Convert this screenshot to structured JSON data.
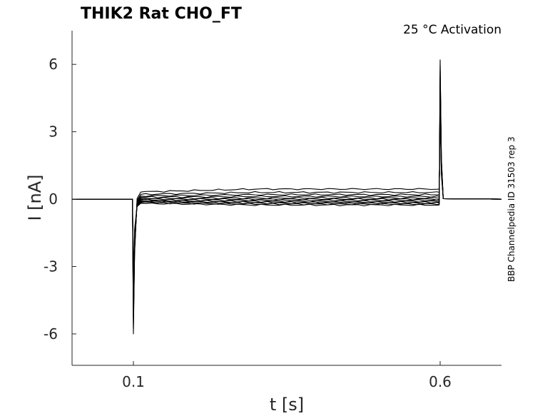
{
  "chart_data": {
    "type": "line",
    "title": "THIK2  Rat  CHO_FT",
    "subtitle": "25 °C  Activation",
    "side_note": "BBP Channelpedia ID 31503 rep 3",
    "xlabel": "t [s]",
    "ylabel": "I [nA]",
    "xlim": [
      0.0,
      0.7
    ],
    "ylim": [
      -7.4,
      7.5
    ],
    "xticks": [
      0.1,
      0.6
    ],
    "xtick_labels": [
      "0.1",
      "0.6"
    ],
    "yticks": [
      6,
      3,
      0,
      -3,
      -6
    ],
    "ytick_labels": [
      "6",
      "3",
      "0",
      "-3",
      "-6"
    ],
    "grid": false,
    "legend": "none",
    "step_on": 0.1,
    "step_off": 0.6,
    "on_transient_min": -6.0,
    "off_transient_max": 6.2,
    "series_plateaus": [
      0.45,
      0.3,
      0.2,
      0.12,
      0.05,
      0.0,
      -0.05,
      -0.1,
      -0.14,
      -0.18,
      -0.22,
      -0.26
    ]
  }
}
